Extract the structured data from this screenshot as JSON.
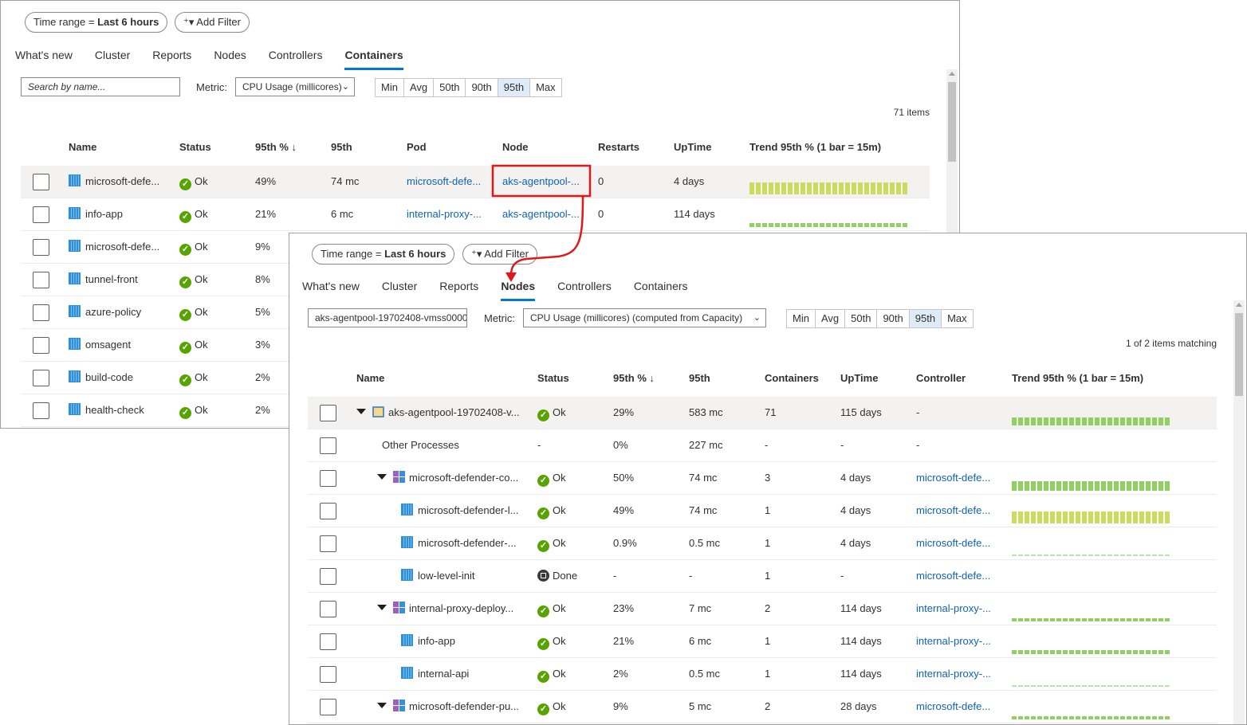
{
  "colors": {
    "accent": "#0078d4",
    "link": "#0f62b5",
    "ok": "#57a300",
    "trend_high": "#cddc5c",
    "trend_mid": "#8fd15e",
    "trend_low": "#b9e3b0",
    "highlight_box": "#e3161b"
  },
  "back": {
    "filter": {
      "time_range_label": "Time range = ",
      "time_range_value": "Last 6 hours",
      "add_filter": "Add Filter"
    },
    "tabs": [
      "What's new",
      "Cluster",
      "Reports",
      "Nodes",
      "Controllers",
      "Containers"
    ],
    "active_tab": "Containers",
    "search_placeholder": "Search by name...",
    "metric_label": "Metric:",
    "metric_value": "CPU Usage (millicores)",
    "percentiles": [
      "Min",
      "Avg",
      "50th",
      "90th",
      "95th",
      "Max"
    ],
    "selected_percentile": "95th",
    "count": "71 items",
    "columns": [
      "Name",
      "Status",
      "95th % ↓",
      "95th",
      "Pod",
      "Node",
      "Restarts",
      "UpTime",
      "Trend 95th % (1 bar = 15m)"
    ],
    "rows": [
      {
        "name": "microsoft-defe...",
        "status": "Ok",
        "pct": "49%",
        "val": "74 mc",
        "pod": "microsoft-defe...",
        "node": "aks-agentpool-...",
        "restarts": "0",
        "uptime": "4 days",
        "trend": {
          "level": 0.85,
          "color": "high"
        }
      },
      {
        "name": "info-app",
        "status": "Ok",
        "pct": "21%",
        "val": "6 mc",
        "pod": "internal-proxy-...",
        "node": "aks-agentpool-...",
        "restarts": "0",
        "uptime": "114 days",
        "trend": {
          "level": 0.3,
          "color": "mid"
        }
      },
      {
        "name": "microsoft-defe...",
        "status": "Ok",
        "pct": "9%"
      },
      {
        "name": "tunnel-front",
        "status": "Ok",
        "pct": "8%"
      },
      {
        "name": "azure-policy",
        "status": "Ok",
        "pct": "5%"
      },
      {
        "name": "omsagent",
        "status": "Ok",
        "pct": "3%"
      },
      {
        "name": "build-code",
        "status": "Ok",
        "pct": "2%"
      },
      {
        "name": "health-check",
        "status": "Ok",
        "pct": "2%"
      }
    ]
  },
  "front": {
    "filter": {
      "time_range_label": "Time range = ",
      "time_range_value": "Last 6 hours",
      "add_filter": "Add Filter"
    },
    "tabs": [
      "What's new",
      "Cluster",
      "Reports",
      "Nodes",
      "Controllers",
      "Containers"
    ],
    "active_tab": "Nodes",
    "search_value": "aks-agentpool-19702408-vmss0000",
    "metric_label": "Metric:",
    "metric_value": "CPU Usage (millicores) (computed from Capacity)",
    "percentiles": [
      "Min",
      "Avg",
      "50th",
      "90th",
      "95th",
      "Max"
    ],
    "selected_percentile": "95th",
    "count": "1 of 2 items matching",
    "columns": [
      "Name",
      "Status",
      "95th % ↓",
      "95th",
      "Containers",
      "UpTime",
      "Controller",
      "Trend 95th % (1 bar = 15m)"
    ],
    "rows": [
      {
        "kind": "node",
        "indent": 0,
        "expanded": true,
        "name": "aks-agentpool-19702408-v...",
        "status": "Ok",
        "pct": "29%",
        "val": "583 mc",
        "containers": "71",
        "uptime": "115 days",
        "controller": "-",
        "trend": {
          "level": 0.55,
          "color": "mid"
        }
      },
      {
        "kind": "other",
        "indent": 1,
        "name": "Other Processes",
        "status": "-",
        "pct": "0%",
        "val": "227 mc",
        "containers": "-",
        "uptime": "-",
        "controller": "-"
      },
      {
        "kind": "controller",
        "indent": 1,
        "expanded": true,
        "name": "microsoft-defender-co...",
        "status": "Ok",
        "pct": "50%",
        "val": "74 mc",
        "containers": "3",
        "uptime": "4 days",
        "controller": "microsoft-defe...",
        "trend": {
          "level": 0.65,
          "color": "mid"
        }
      },
      {
        "kind": "container",
        "indent": 2,
        "name": "microsoft-defender-l...",
        "status": "Ok",
        "pct": "49%",
        "val": "74 mc",
        "containers": "1",
        "uptime": "4 days",
        "controller": "microsoft-defe...",
        "trend": {
          "level": 0.85,
          "color": "high"
        }
      },
      {
        "kind": "container",
        "indent": 2,
        "name": "microsoft-defender-...",
        "status": "Ok",
        "pct": "0.9%",
        "val": "0.5 mc",
        "containers": "1",
        "uptime": "4 days",
        "controller": "microsoft-defe...",
        "trend": {
          "level": 0.05,
          "color": "low"
        }
      },
      {
        "kind": "container",
        "indent": 2,
        "name": "low-level-init",
        "status": "Done",
        "pct": "-",
        "val": "-",
        "containers": "1",
        "uptime": "-",
        "controller": "microsoft-defe..."
      },
      {
        "kind": "controller",
        "indent": 1,
        "expanded": true,
        "name": "internal-proxy-deploy...",
        "status": "Ok",
        "pct": "23%",
        "val": "7 mc",
        "containers": "2",
        "uptime": "114 days",
        "controller": "internal-proxy-...",
        "trend": {
          "level": 0.2,
          "color": "mid"
        }
      },
      {
        "kind": "container",
        "indent": 2,
        "name": "info-app",
        "status": "Ok",
        "pct": "21%",
        "val": "6 mc",
        "containers": "1",
        "uptime": "114 days",
        "controller": "internal-proxy-...",
        "trend": {
          "level": 0.3,
          "color": "mid"
        }
      },
      {
        "kind": "container",
        "indent": 2,
        "name": "internal-api",
        "status": "Ok",
        "pct": "2%",
        "val": "0.5 mc",
        "containers": "1",
        "uptime": "114 days",
        "controller": "internal-proxy-...",
        "trend": {
          "level": 0.05,
          "color": "low"
        }
      },
      {
        "kind": "controller",
        "indent": 1,
        "expanded": true,
        "name": "microsoft-defender-pu...",
        "status": "Ok",
        "pct": "9%",
        "val": "5 mc",
        "containers": "2",
        "uptime": "28 days",
        "controller": "microsoft-defe...",
        "trend": {
          "level": 0.2,
          "color": "mid"
        }
      }
    ]
  }
}
